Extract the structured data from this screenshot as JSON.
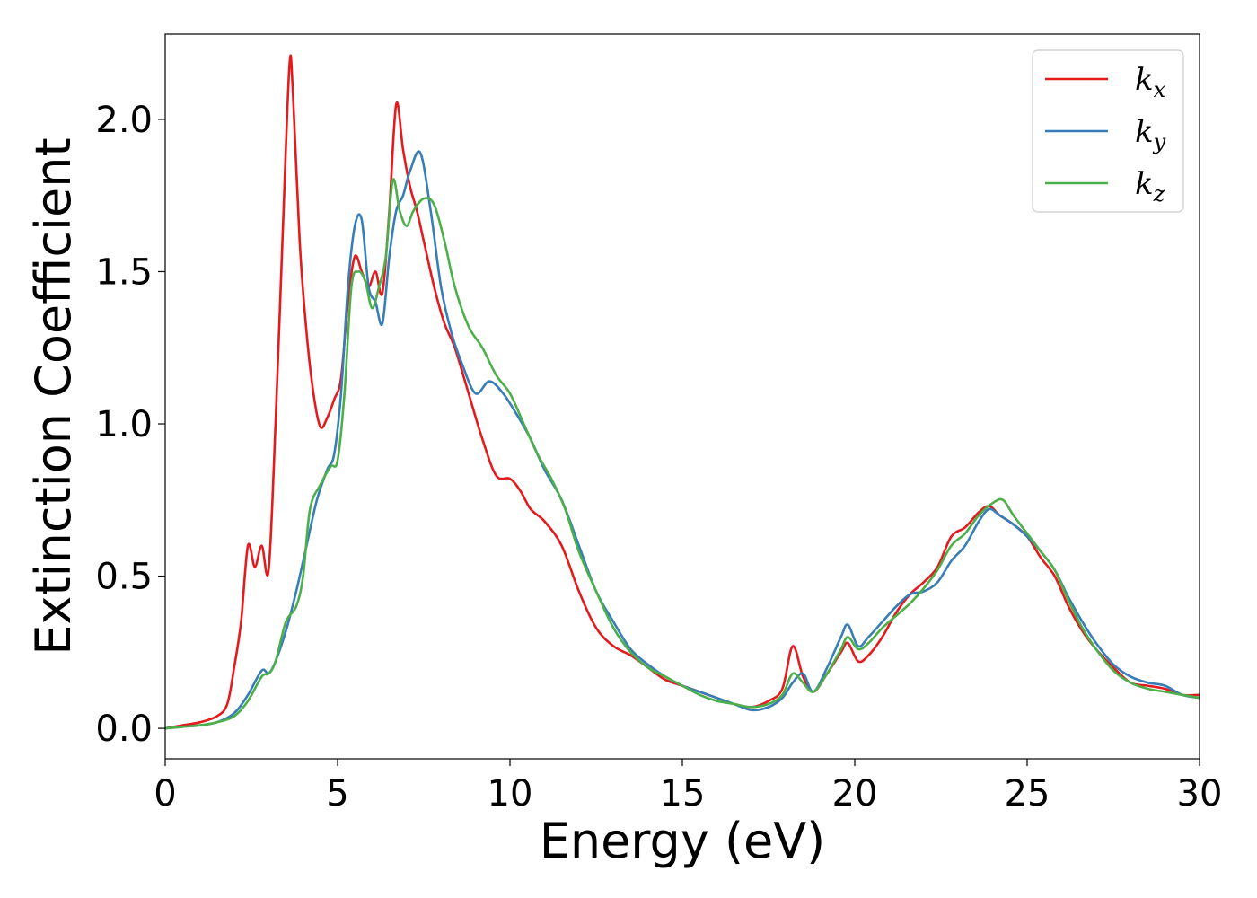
{
  "chart_data": {
    "type": "line",
    "title": "",
    "xlabel": "Energy (eV)",
    "ylabel": "Extinction Coefficient",
    "xlim": [
      0,
      30
    ],
    "ylim": [
      -0.1,
      2.28
    ],
    "xticks": [
      "0",
      "5",
      "10",
      "15",
      "20",
      "25",
      "30"
    ],
    "yticks": [
      "0.0",
      "0.5",
      "1.0",
      "1.5",
      "2.0"
    ],
    "grid": false,
    "legend_position": "top-right",
    "series": [
      {
        "name": "k",
        "subscript": "x",
        "color": "#e41a1c",
        "x": [
          0,
          0.5,
          1,
          1.5,
          1.8,
          2.0,
          2.2,
          2.4,
          2.6,
          2.8,
          3.0,
          3.2,
          3.4,
          3.6,
          3.7,
          3.9,
          4.1,
          4.3,
          4.5,
          4.7,
          4.9,
          5.1,
          5.3,
          5.5,
          5.7,
          5.9,
          6.1,
          6.3,
          6.5,
          6.7,
          6.9,
          7.1,
          7.3,
          7.5,
          7.8,
          8.1,
          8.4,
          8.8,
          9.2,
          9.6,
          10.0,
          10.3,
          10.6,
          11.0,
          11.5,
          12.0,
          12.5,
          13.0,
          13.5,
          14.0,
          14.5,
          15.0,
          15.5,
          16.0,
          16.5,
          17.0,
          17.5,
          17.9,
          18.2,
          18.5,
          18.8,
          19.2,
          19.6,
          19.8,
          20.1,
          20.4,
          20.8,
          21.2,
          21.6,
          22.0,
          22.4,
          22.8,
          23.2,
          23.6,
          23.9,
          24.2,
          24.6,
          25.0,
          25.4,
          25.8,
          26.2,
          26.6,
          27.0,
          27.5,
          28.0,
          28.5,
          29.0,
          29.5,
          30.0
        ],
        "values": [
          0.0,
          0.01,
          0.02,
          0.04,
          0.08,
          0.2,
          0.35,
          0.6,
          0.53,
          0.6,
          0.52,
          1.0,
          1.6,
          2.17,
          2.1,
          1.6,
          1.3,
          1.1,
          0.99,
          1.02,
          1.08,
          1.15,
          1.4,
          1.55,
          1.5,
          1.45,
          1.5,
          1.43,
          1.7,
          2.05,
          1.9,
          1.78,
          1.7,
          1.6,
          1.45,
          1.33,
          1.25,
          1.1,
          0.95,
          0.83,
          0.82,
          0.78,
          0.72,
          0.68,
          0.6,
          0.45,
          0.33,
          0.27,
          0.24,
          0.2,
          0.16,
          0.14,
          0.12,
          0.1,
          0.08,
          0.07,
          0.09,
          0.13,
          0.27,
          0.17,
          0.12,
          0.18,
          0.25,
          0.28,
          0.22,
          0.24,
          0.3,
          0.38,
          0.44,
          0.48,
          0.53,
          0.63,
          0.66,
          0.71,
          0.73,
          0.7,
          0.67,
          0.63,
          0.56,
          0.5,
          0.4,
          0.32,
          0.26,
          0.2,
          0.15,
          0.14,
          0.13,
          0.11,
          0.11
        ]
      },
      {
        "name": "k",
        "subscript": "y",
        "color": "#377eb8",
        "x": [
          0,
          0.5,
          1,
          1.5,
          2.0,
          2.4,
          2.8,
          3.0,
          3.2,
          3.5,
          3.8,
          4.1,
          4.4,
          4.7,
          4.9,
          5.1,
          5.3,
          5.5,
          5.7,
          5.9,
          6.1,
          6.3,
          6.5,
          6.7,
          6.9,
          7.1,
          7.4,
          7.7,
          8.0,
          8.3,
          8.6,
          9.0,
          9.4,
          9.8,
          10.2,
          10.6,
          11.0,
          11.5,
          12.0,
          12.5,
          13.0,
          13.5,
          14.0,
          14.5,
          15.0,
          15.5,
          16.0,
          16.5,
          17.0,
          17.5,
          17.9,
          18.2,
          18.5,
          18.8,
          19.2,
          19.6,
          19.8,
          20.1,
          20.4,
          20.8,
          21.2,
          21.6,
          22.0,
          22.4,
          22.8,
          23.2,
          23.6,
          23.9,
          24.2,
          24.6,
          25.0,
          25.4,
          25.8,
          26.2,
          26.6,
          27.0,
          27.5,
          28.0,
          28.5,
          29.0,
          29.5,
          30.0
        ],
        "values": [
          0.0,
          0.005,
          0.01,
          0.02,
          0.05,
          0.11,
          0.19,
          0.18,
          0.22,
          0.32,
          0.45,
          0.6,
          0.75,
          0.85,
          0.9,
          1.1,
          1.45,
          1.65,
          1.67,
          1.45,
          1.4,
          1.33,
          1.55,
          1.7,
          1.75,
          1.83,
          1.89,
          1.7,
          1.45,
          1.3,
          1.2,
          1.1,
          1.14,
          1.1,
          1.03,
          0.95,
          0.85,
          0.75,
          0.6,
          0.45,
          0.35,
          0.26,
          0.21,
          0.17,
          0.14,
          0.12,
          0.1,
          0.08,
          0.06,
          0.07,
          0.1,
          0.15,
          0.18,
          0.12,
          0.2,
          0.3,
          0.34,
          0.27,
          0.3,
          0.35,
          0.4,
          0.44,
          0.45,
          0.48,
          0.55,
          0.6,
          0.68,
          0.72,
          0.7,
          0.67,
          0.63,
          0.58,
          0.52,
          0.43,
          0.35,
          0.28,
          0.21,
          0.17,
          0.15,
          0.14,
          0.11,
          0.1
        ]
      },
      {
        "name": "k",
        "subscript": "z",
        "color": "#4daf4a",
        "x": [
          0,
          0.5,
          1,
          1.5,
          2.0,
          2.4,
          2.8,
          3.0,
          3.2,
          3.5,
          3.8,
          4.0,
          4.2,
          4.5,
          4.8,
          5.0,
          5.2,
          5.4,
          5.6,
          5.8,
          6.0,
          6.2,
          6.4,
          6.6,
          6.8,
          7.0,
          7.2,
          7.5,
          7.8,
          8.1,
          8.4,
          8.8,
          9.2,
          9.6,
          10.0,
          10.4,
          10.8,
          11.2,
          11.6,
          12.0,
          12.5,
          13.0,
          13.5,
          14.0,
          14.5,
          15.0,
          15.5,
          16.0,
          16.5,
          17.0,
          17.5,
          17.9,
          18.2,
          18.5,
          18.8,
          19.2,
          19.6,
          19.8,
          20.1,
          20.4,
          20.8,
          21.2,
          21.6,
          22.0,
          22.4,
          22.8,
          23.2,
          23.6,
          24.0,
          24.3,
          24.6,
          25.0,
          25.4,
          25.8,
          26.2,
          26.6,
          27.0,
          27.5,
          28.0,
          28.5,
          29.0,
          29.5,
          30.0
        ],
        "values": [
          0.0,
          0.005,
          0.01,
          0.02,
          0.04,
          0.09,
          0.17,
          0.18,
          0.22,
          0.35,
          0.4,
          0.5,
          0.72,
          0.8,
          0.86,
          0.88,
          1.1,
          1.45,
          1.5,
          1.47,
          1.38,
          1.45,
          1.55,
          1.8,
          1.7,
          1.65,
          1.7,
          1.74,
          1.72,
          1.6,
          1.45,
          1.32,
          1.25,
          1.16,
          1.1,
          1.0,
          0.9,
          0.82,
          0.72,
          0.58,
          0.45,
          0.33,
          0.25,
          0.2,
          0.17,
          0.14,
          0.11,
          0.09,
          0.08,
          0.07,
          0.08,
          0.11,
          0.18,
          0.15,
          0.12,
          0.18,
          0.26,
          0.3,
          0.26,
          0.28,
          0.33,
          0.37,
          0.41,
          0.46,
          0.52,
          0.6,
          0.64,
          0.7,
          0.74,
          0.75,
          0.7,
          0.64,
          0.58,
          0.52,
          0.42,
          0.33,
          0.26,
          0.19,
          0.15,
          0.13,
          0.12,
          0.11,
          0.1
        ]
      }
    ]
  }
}
